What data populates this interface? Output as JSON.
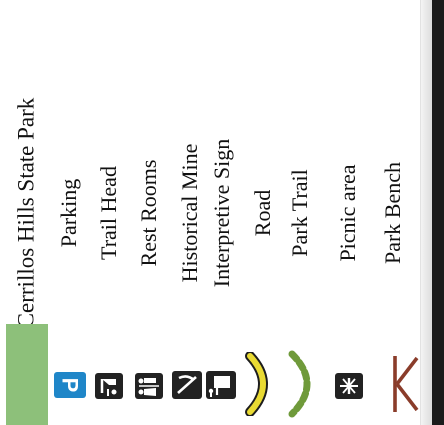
{
  "legend": {
    "title": "Cerrillos Hills State Park",
    "items": [
      {
        "label": "Parking",
        "icon": "parking-icon"
      },
      {
        "label": "Trail Head",
        "icon": "trail-head-icon"
      },
      {
        "label": "Rest Rooms",
        "icon": "restroom-icon"
      },
      {
        "label": "Historical Mine",
        "icon": "mine-icon"
      },
      {
        "label": "Interpretive Sign",
        "icon": "interpretive-sign-icon"
      },
      {
        "label": "Road",
        "icon": "road-icon"
      },
      {
        "label": "Park Trail",
        "icon": "park-trail-icon"
      },
      {
        "label": "Picnic area",
        "icon": "picnic-icon"
      },
      {
        "label": "Park Bench",
        "icon": "bench-icon"
      }
    ]
  },
  "colors": {
    "park_green": "#8dc07a",
    "sign_blue": "#1f86c8",
    "road_yellow": "#e9da33",
    "trail_green": "#6f9a3a",
    "bench_brown": "#8a3c2a",
    "icon_dark": "#222222"
  }
}
